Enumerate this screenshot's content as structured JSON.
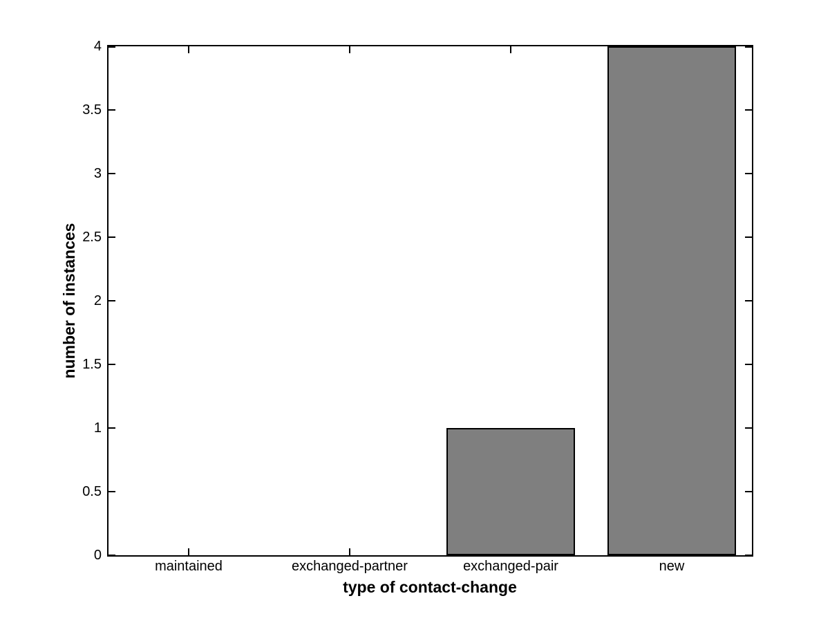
{
  "figure": {
    "background": "#ffffff"
  },
  "chart_data": {
    "type": "bar",
    "title": "",
    "xlabel": "type of contact-change",
    "ylabel": "number of instances",
    "categories": [
      "maintained",
      "exchanged-partner",
      "exchanged-pair",
      "new"
    ],
    "values": [
      0,
      0,
      1,
      4
    ],
    "ylim": [
      0,
      4
    ],
    "yticks": [
      0,
      0.5,
      1,
      1.5,
      2,
      2.5,
      3,
      3.5,
      4
    ],
    "ytick_labels": [
      "0",
      "0.5",
      "1",
      "1.5",
      "2",
      "2.5",
      "3",
      "3.5",
      "4"
    ],
    "bar_width_fraction": 0.8,
    "bar_color": "#7f7f7f",
    "bar_edge_color": "#000000",
    "axis_color": "#000000",
    "grid": false,
    "legend_position": "none"
  }
}
